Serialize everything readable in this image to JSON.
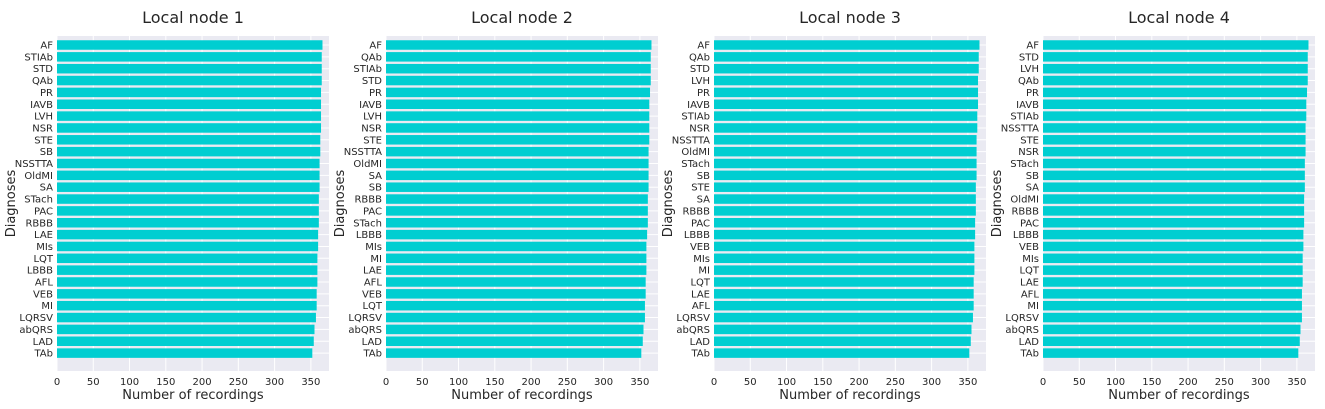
{
  "chart_data": [
    {
      "type": "bar",
      "orientation": "horizontal",
      "title": "Local node 1",
      "xlabel": "Number of recordings",
      "ylabel": "Diagnoses",
      "xlim": [
        0,
        375
      ],
      "xticks": [
        0,
        50,
        100,
        150,
        200,
        250,
        300,
        350
      ],
      "grid": true,
      "bar_color": "#00CED1",
      "background": "#EAEAF2",
      "categories": [
        "AF",
        "STIAb",
        "STD",
        "QAb",
        "PR",
        "IAVB",
        "LVH",
        "NSR",
        "STE",
        "SB",
        "NSSTTA",
        "OldMI",
        "SA",
        "STach",
        "PAC",
        "RBBB",
        "LAE",
        "MIs",
        "LQT",
        "LBBB",
        "AFL",
        "VEB",
        "MI",
        "LQRSV",
        "abQRS",
        "LAD",
        "TAb"
      ],
      "values": [
        366,
        365,
        365,
        365,
        364,
        364,
        364,
        364,
        363,
        363,
        362,
        362,
        362,
        361,
        361,
        361,
        360,
        360,
        359,
        359,
        359,
        358,
        358,
        357,
        355,
        354,
        352
      ]
    },
    {
      "type": "bar",
      "orientation": "horizontal",
      "title": "Local node 2",
      "xlabel": "Number of recordings",
      "ylabel": "Diagnoses",
      "xlim": [
        0,
        375
      ],
      "xticks": [
        0,
        50,
        100,
        150,
        200,
        250,
        300,
        350
      ],
      "grid": true,
      "bar_color": "#00CED1",
      "background": "#EAEAF2",
      "categories": [
        "AF",
        "QAb",
        "STIAb",
        "STD",
        "PR",
        "IAVB",
        "LVH",
        "NSR",
        "STE",
        "NSSTTA",
        "OldMI",
        "SA",
        "SB",
        "RBBB",
        "PAC",
        "STach",
        "LBBB",
        "MIs",
        "MI",
        "LAE",
        "AFL",
        "VEB",
        "LQT",
        "LQRSV",
        "abQRS",
        "LAD",
        "TAb"
      ],
      "values": [
        366,
        365,
        365,
        365,
        364,
        363,
        363,
        363,
        363,
        362,
        362,
        362,
        362,
        361,
        361,
        361,
        360,
        359,
        359,
        359,
        358,
        358,
        357,
        357,
        355,
        354,
        352
      ]
    },
    {
      "type": "bar",
      "orientation": "horizontal",
      "title": "Local node 3",
      "xlabel": "Number of recordings",
      "ylabel": "Diagnoses",
      "xlim": [
        0,
        375
      ],
      "xticks": [
        0,
        50,
        100,
        150,
        200,
        250,
        300,
        350
      ],
      "grid": true,
      "bar_color": "#00CED1",
      "background": "#EAEAF2",
      "categories": [
        "AF",
        "QAb",
        "STD",
        "LVH",
        "PR",
        "IAVB",
        "STIAb",
        "NSR",
        "NSSTTA",
        "OldMI",
        "STach",
        "SB",
        "STE",
        "SA",
        "RBBB",
        "PAC",
        "LBBB",
        "VEB",
        "MIs",
        "MI",
        "LQT",
        "LAE",
        "AFL",
        "LQRSV",
        "abQRS",
        "LAD",
        "TAb"
      ],
      "values": [
        366,
        365,
        365,
        364,
        364,
        364,
        363,
        363,
        362,
        362,
        362,
        362,
        361,
        361,
        361,
        360,
        360,
        359,
        359,
        359,
        358,
        358,
        358,
        357,
        355,
        354,
        352
      ]
    },
    {
      "type": "bar",
      "orientation": "horizontal",
      "title": "Local node 4",
      "xlabel": "Number of recordings",
      "ylabel": "Diagnoses",
      "xlim": [
        0,
        375
      ],
      "xticks": [
        0,
        50,
        100,
        150,
        200,
        250,
        300,
        350
      ],
      "grid": true,
      "bar_color": "#00CED1",
      "background": "#EAEAF2",
      "categories": [
        "AF",
        "STD",
        "LVH",
        "QAb",
        "PR",
        "IAVB",
        "STIAb",
        "NSSTTA",
        "STE",
        "NSR",
        "STach",
        "SB",
        "SA",
        "OldMI",
        "RBBB",
        "PAC",
        "LBBB",
        "VEB",
        "MIs",
        "LQT",
        "LAE",
        "AFL",
        "MI",
        "LQRSV",
        "abQRS",
        "LAD",
        "TAb"
      ],
      "values": [
        366,
        365,
        365,
        365,
        364,
        363,
        363,
        362,
        362,
        362,
        361,
        361,
        361,
        360,
        360,
        360,
        359,
        359,
        358,
        358,
        358,
        357,
        357,
        357,
        355,
        354,
        352
      ]
    }
  ]
}
